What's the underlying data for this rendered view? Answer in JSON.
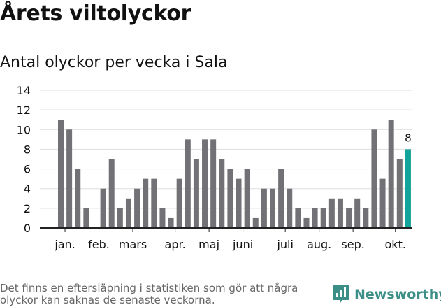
{
  "title": "Årets viltolyckor",
  "subtitle": "Antal olyckor per vecka i Sala",
  "footnote": "Det finns en eftersläpning i statistiken som gör att några olyckor kan saknas de senaste veckorna.",
  "brand": {
    "name": "Newsworthy",
    "icon": "newsworthy-logo-icon"
  },
  "colors": {
    "bar": "#727175",
    "highlight": "#12a39a",
    "grid": "#dddddd",
    "axis": "#222222",
    "text": "#111111"
  },
  "chart_data": {
    "type": "bar",
    "title": "Årets viltolyckor",
    "subtitle": "Antal olyckor per vecka i Sala",
    "xlabel": "",
    "ylabel": "",
    "ylim": [
      0,
      14
    ],
    "yticks": [
      0,
      2,
      4,
      6,
      8,
      10,
      12,
      14
    ],
    "grid": true,
    "x": [
      1,
      2,
      3,
      4,
      5,
      6,
      7,
      8,
      9,
      10,
      11,
      12,
      13,
      14,
      15,
      16,
      17,
      18,
      19,
      20,
      21,
      22,
      23,
      24,
      25,
      26,
      27,
      28,
      29,
      30,
      31,
      32,
      33,
      34,
      35,
      36,
      37,
      38,
      39,
      40,
      41,
      42
    ],
    "values": [
      11,
      10,
      6,
      2,
      0,
      4,
      7,
      2,
      3,
      4,
      5,
      5,
      2,
      1,
      5,
      9,
      7,
      9,
      9,
      7,
      6,
      5,
      6,
      1,
      4,
      4,
      6,
      4,
      2,
      1,
      2,
      2,
      3,
      3,
      2,
      3,
      2,
      10,
      5,
      11,
      7,
      8
    ],
    "highlight_last": true,
    "last_value_label": "8",
    "month_labels": [
      {
        "label": "jan.",
        "week": 1.5
      },
      {
        "label": "feb.",
        "week": 5.5
      },
      {
        "label": "mars",
        "week": 9.5
      },
      {
        "label": "apr.",
        "week": 14.5
      },
      {
        "label": "maj",
        "week": 18.5
      },
      {
        "label": "juni",
        "week": 22.5
      },
      {
        "label": "juli",
        "week": 27.5
      },
      {
        "label": "aug.",
        "week": 31.5
      },
      {
        "label": "sep.",
        "week": 35.5
      },
      {
        "label": "okt.",
        "week": 40.5
      }
    ]
  }
}
